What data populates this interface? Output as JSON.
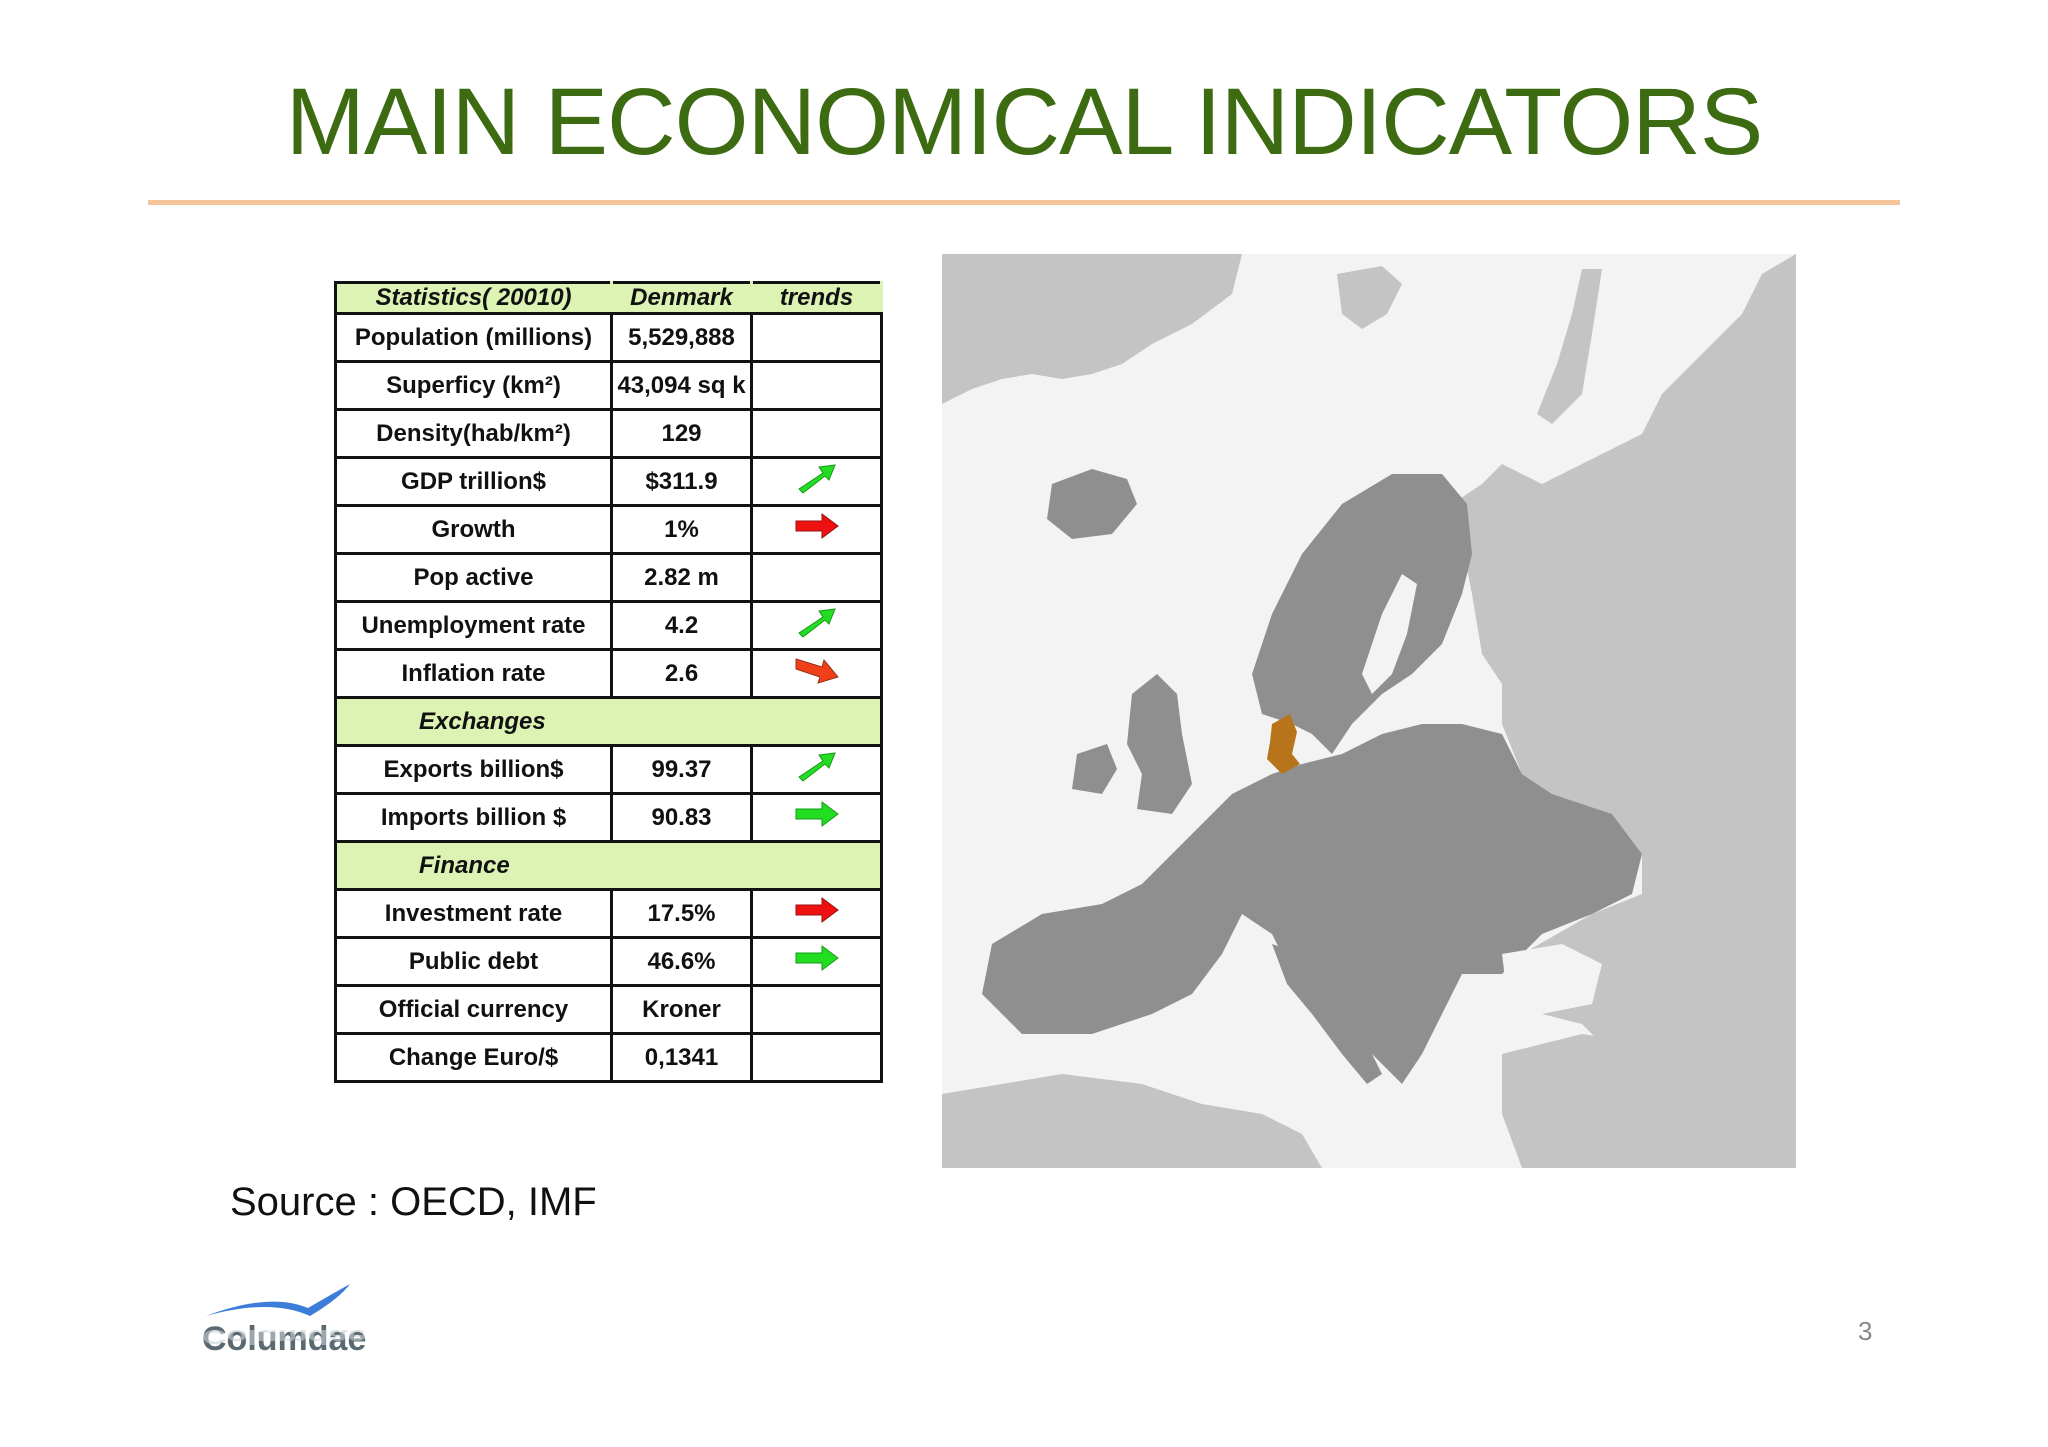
{
  "slide": {
    "title": "MAIN ECONOMICAL INDICATORS",
    "source": "Source : OECD, IMF",
    "page_number": "3",
    "logo_text": "Columdae",
    "accent_color": "#3c6b12",
    "rule_color": "#f5c49a"
  },
  "table": {
    "headers": [
      "Statistics( 20010)",
      "Denmark",
      "trends"
    ],
    "rows": [
      {
        "kind": "row",
        "label": "Population (millions)",
        "value": "5,529,888",
        "trend": "none"
      },
      {
        "kind": "row",
        "label": "Superficy (km²)",
        "value": "43,094 sq k",
        "trend": "none"
      },
      {
        "kind": "row",
        "label": "Density(hab/km²)",
        "value": "129",
        "trend": "none"
      },
      {
        "kind": "row",
        "label": "GDP trillion$",
        "value": "$311.9",
        "trend": "green-up"
      },
      {
        "kind": "row",
        "label": "Growth",
        "value": "1%",
        "trend": "red-right"
      },
      {
        "kind": "row",
        "label": "Pop active",
        "value": "2.82 m",
        "trend": "none"
      },
      {
        "kind": "row",
        "label": "Unemployment rate",
        "value": "4.2",
        "trend": "green-up"
      },
      {
        "kind": "row",
        "label": "Inflation rate",
        "value": "2.6",
        "trend": "red-down"
      },
      {
        "kind": "section",
        "label": "Exchanges"
      },
      {
        "kind": "row",
        "label": "Exports billion$",
        "value": "99.37",
        "trend": "green-up"
      },
      {
        "kind": "row",
        "label": "Imports billion $",
        "value": "90.83",
        "trend": "green-right"
      },
      {
        "kind": "section",
        "label": "Finance"
      },
      {
        "kind": "row",
        "label": "Investment rate",
        "value": "17.5%",
        "trend": "red-right"
      },
      {
        "kind": "row",
        "label": "Public debt",
        "value": "46.6%",
        "trend": "green-right"
      },
      {
        "kind": "row",
        "label": "Official currency",
        "value": "Kroner",
        "trend": "none"
      },
      {
        "kind": "row",
        "label": "Change Euro/$",
        "value": "0,1341",
        "trend": "none"
      }
    ],
    "colors": {
      "header_bg": "#ddf3b4",
      "green_arrow": "#22dd22",
      "red_arrow": "#ee1111",
      "orange_red_arrow": "#f0401a"
    }
  },
  "map": {
    "highlight_country_color": "#b8741a",
    "europe_color": "#8f8f8f",
    "other_land_color": "#c4c4c4",
    "sea_color": "#f3f3f3"
  }
}
